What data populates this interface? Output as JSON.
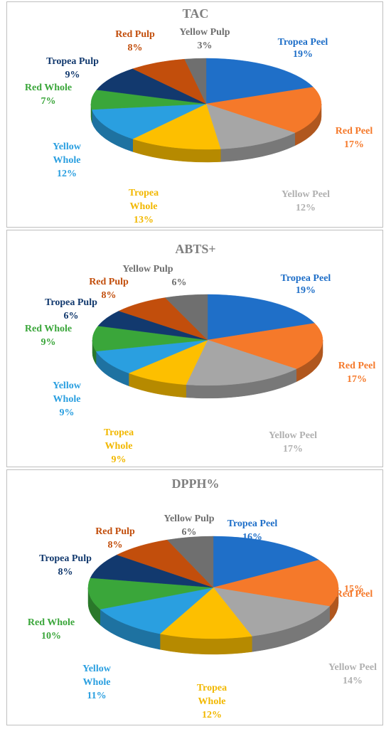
{
  "colors": {
    "Tropea Peel": "#1f6fc8",
    "Red Peel": "#f5792a",
    "Yellow Peel": "#a6a6a6",
    "Tropea Whole": "#fdbf00",
    "Yellow Whole": "#2a9fe0",
    "Red Whole": "#3aa63a",
    "Tropea Pulp": "#12396e",
    "Red Pulp": "#c24e0c",
    "Yellow Pulp": "#6f6f6f"
  },
  "chart_data": [
    {
      "type": "pie",
      "title": "TAC",
      "slices": [
        {
          "name": "Tropea Peel",
          "value": 19,
          "label": "19%"
        },
        {
          "name": "Red Peel",
          "value": 17,
          "label": "17%"
        },
        {
          "name": "Yellow Peel",
          "value": 12,
          "label": "12%"
        },
        {
          "name": "Tropea Whole",
          "value": 13,
          "label": "13%"
        },
        {
          "name": "Yellow Whole",
          "value": 12,
          "label": "12%"
        },
        {
          "name": "Red Whole",
          "value": 7,
          "label": "7%"
        },
        {
          "name": "Tropea Pulp",
          "value": 9,
          "label": "9%"
        },
        {
          "name": "Red Pulp",
          "value": 8,
          "label": "8%"
        },
        {
          "name": "Yellow Pulp",
          "value": 3,
          "label": "3%"
        }
      ]
    },
    {
      "type": "pie",
      "title": "ABTS+",
      "slices": [
        {
          "name": "Tropea Peel",
          "value": 19,
          "label": "19%"
        },
        {
          "name": "Red Peel",
          "value": 17,
          "label": "17%"
        },
        {
          "name": "Yellow Peel",
          "value": 17,
          "label": "17%"
        },
        {
          "name": "Tropea Whole",
          "value": 9,
          "label": "9%"
        },
        {
          "name": "Yellow Whole",
          "value": 9,
          "label": "9%"
        },
        {
          "name": "Red Whole",
          "value": 9,
          "label": "9%"
        },
        {
          "name": "Tropea Pulp",
          "value": 6,
          "label": "6%"
        },
        {
          "name": "Red Pulp",
          "value": 8,
          "label": "8%"
        },
        {
          "name": "Yellow Pulp",
          "value": 6,
          "label": "6%"
        }
      ]
    },
    {
      "type": "pie",
      "title": "DPPH%",
      "slices": [
        {
          "name": "Tropea Peel",
          "value": 16,
          "label": "16%"
        },
        {
          "name": "Red Peel",
          "value": 15,
          "label": "15%"
        },
        {
          "name": "Yellow Peel",
          "value": 14,
          "label": "14%"
        },
        {
          "name": "Tropea Whole",
          "value": 12,
          "label": "12%"
        },
        {
          "name": "Yellow Whole",
          "value": 11,
          "label": "11%"
        },
        {
          "name": "Red Whole",
          "value": 10,
          "label": "10%"
        },
        {
          "name": "Tropea Pulp",
          "value": 8,
          "label": "8%"
        },
        {
          "name": "Red Pulp",
          "value": 8,
          "label": "8%"
        },
        {
          "name": "Yellow Pulp",
          "value": 6,
          "label": "6%"
        }
      ]
    }
  ]
}
